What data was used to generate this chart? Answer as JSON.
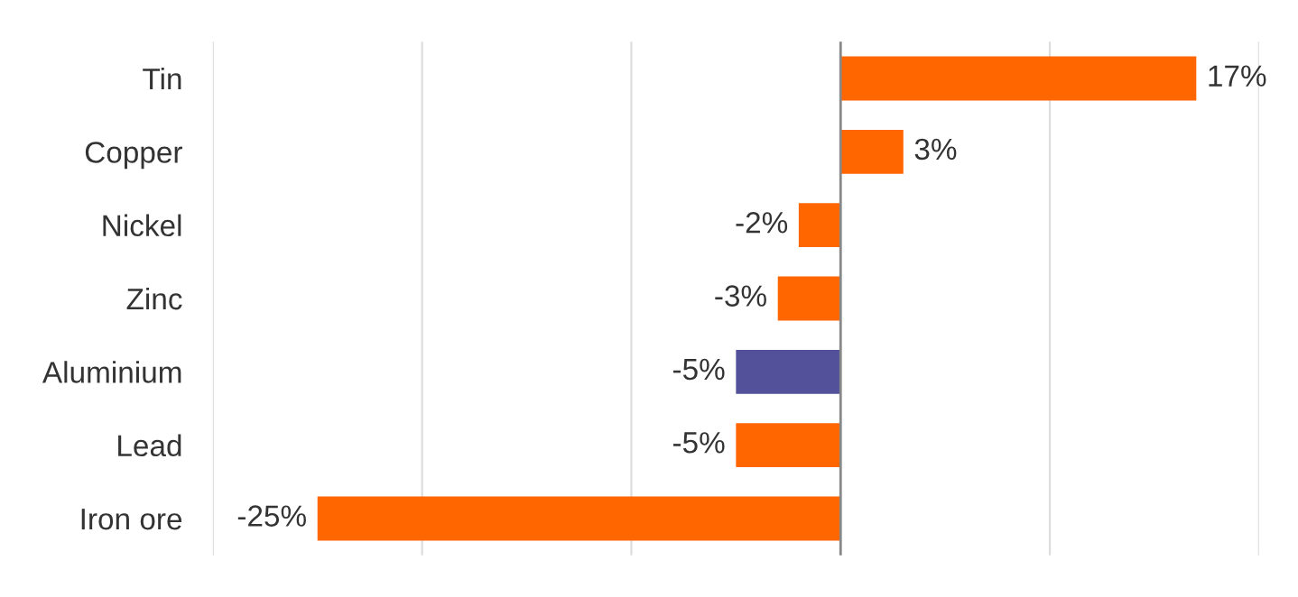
{
  "chart_data": {
    "type": "bar",
    "orientation": "horizontal",
    "categories": [
      "Tin",
      "Copper",
      "Nickel",
      "Zinc",
      "Aluminium",
      "Lead",
      "Iron ore"
    ],
    "values": [
      17,
      3,
      -2,
      -3,
      -5,
      -5,
      -25
    ],
    "value_labels": [
      "17%",
      "3%",
      "-2%",
      "-3%",
      "-5%",
      "-5%",
      "-25%"
    ],
    "colors": [
      "#ff6600",
      "#ff6600",
      "#ff6600",
      "#ff6600",
      "#525199",
      "#ff6600",
      "#ff6600"
    ],
    "xlim": [
      -30,
      20
    ],
    "xticks": [
      {
        "value": -30,
        "label": null
      },
      {
        "value": -20,
        "label": null
      },
      {
        "value": -10,
        "label": null
      },
      {
        "value": 0,
        "label": null
      },
      {
        "value": 10,
        "label": null
      },
      {
        "value": 20,
        "label": null
      }
    ],
    "tick_labels": "y",
    "grid": "x",
    "legend": false
  }
}
